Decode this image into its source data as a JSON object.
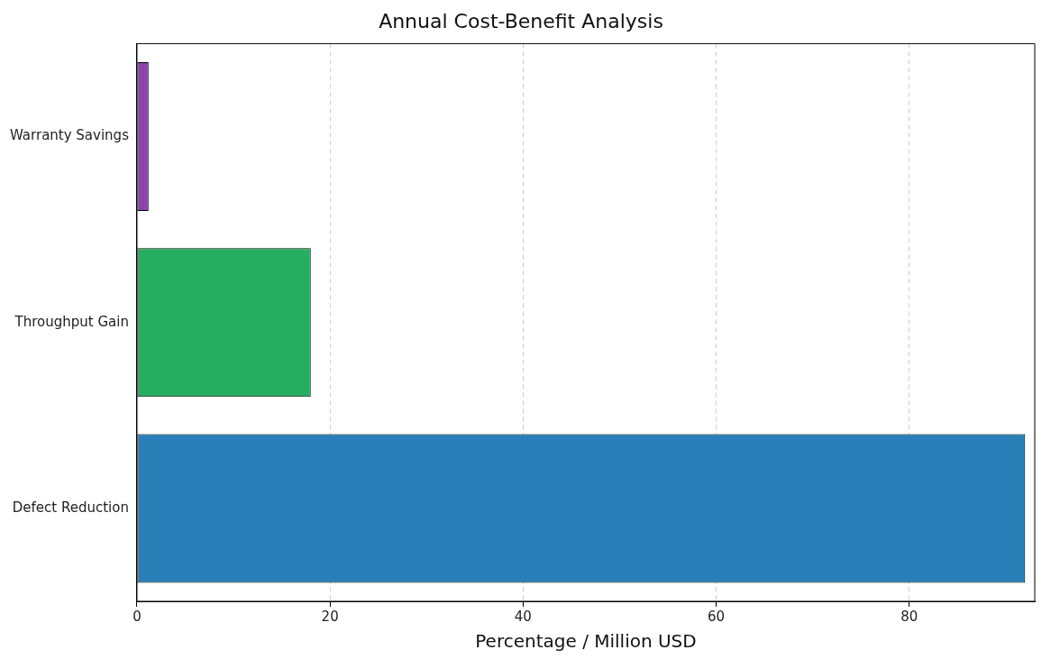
{
  "chart_data": {
    "type": "bar",
    "orientation": "horizontal",
    "title": "Annual Cost-Benefit Analysis",
    "xlabel": "Percentage / Million USD",
    "categories": [
      "Warranty Savings",
      "Throughput Gain",
      "Defect Reduction"
    ],
    "values": [
      1.2,
      18,
      92
    ],
    "colors": [
      "#8e44ad",
      "#27ae60",
      "#2980b9"
    ],
    "xlim": [
      0,
      93
    ],
    "xticks": [
      0,
      20,
      40,
      60,
      80
    ],
    "grid": "x"
  }
}
